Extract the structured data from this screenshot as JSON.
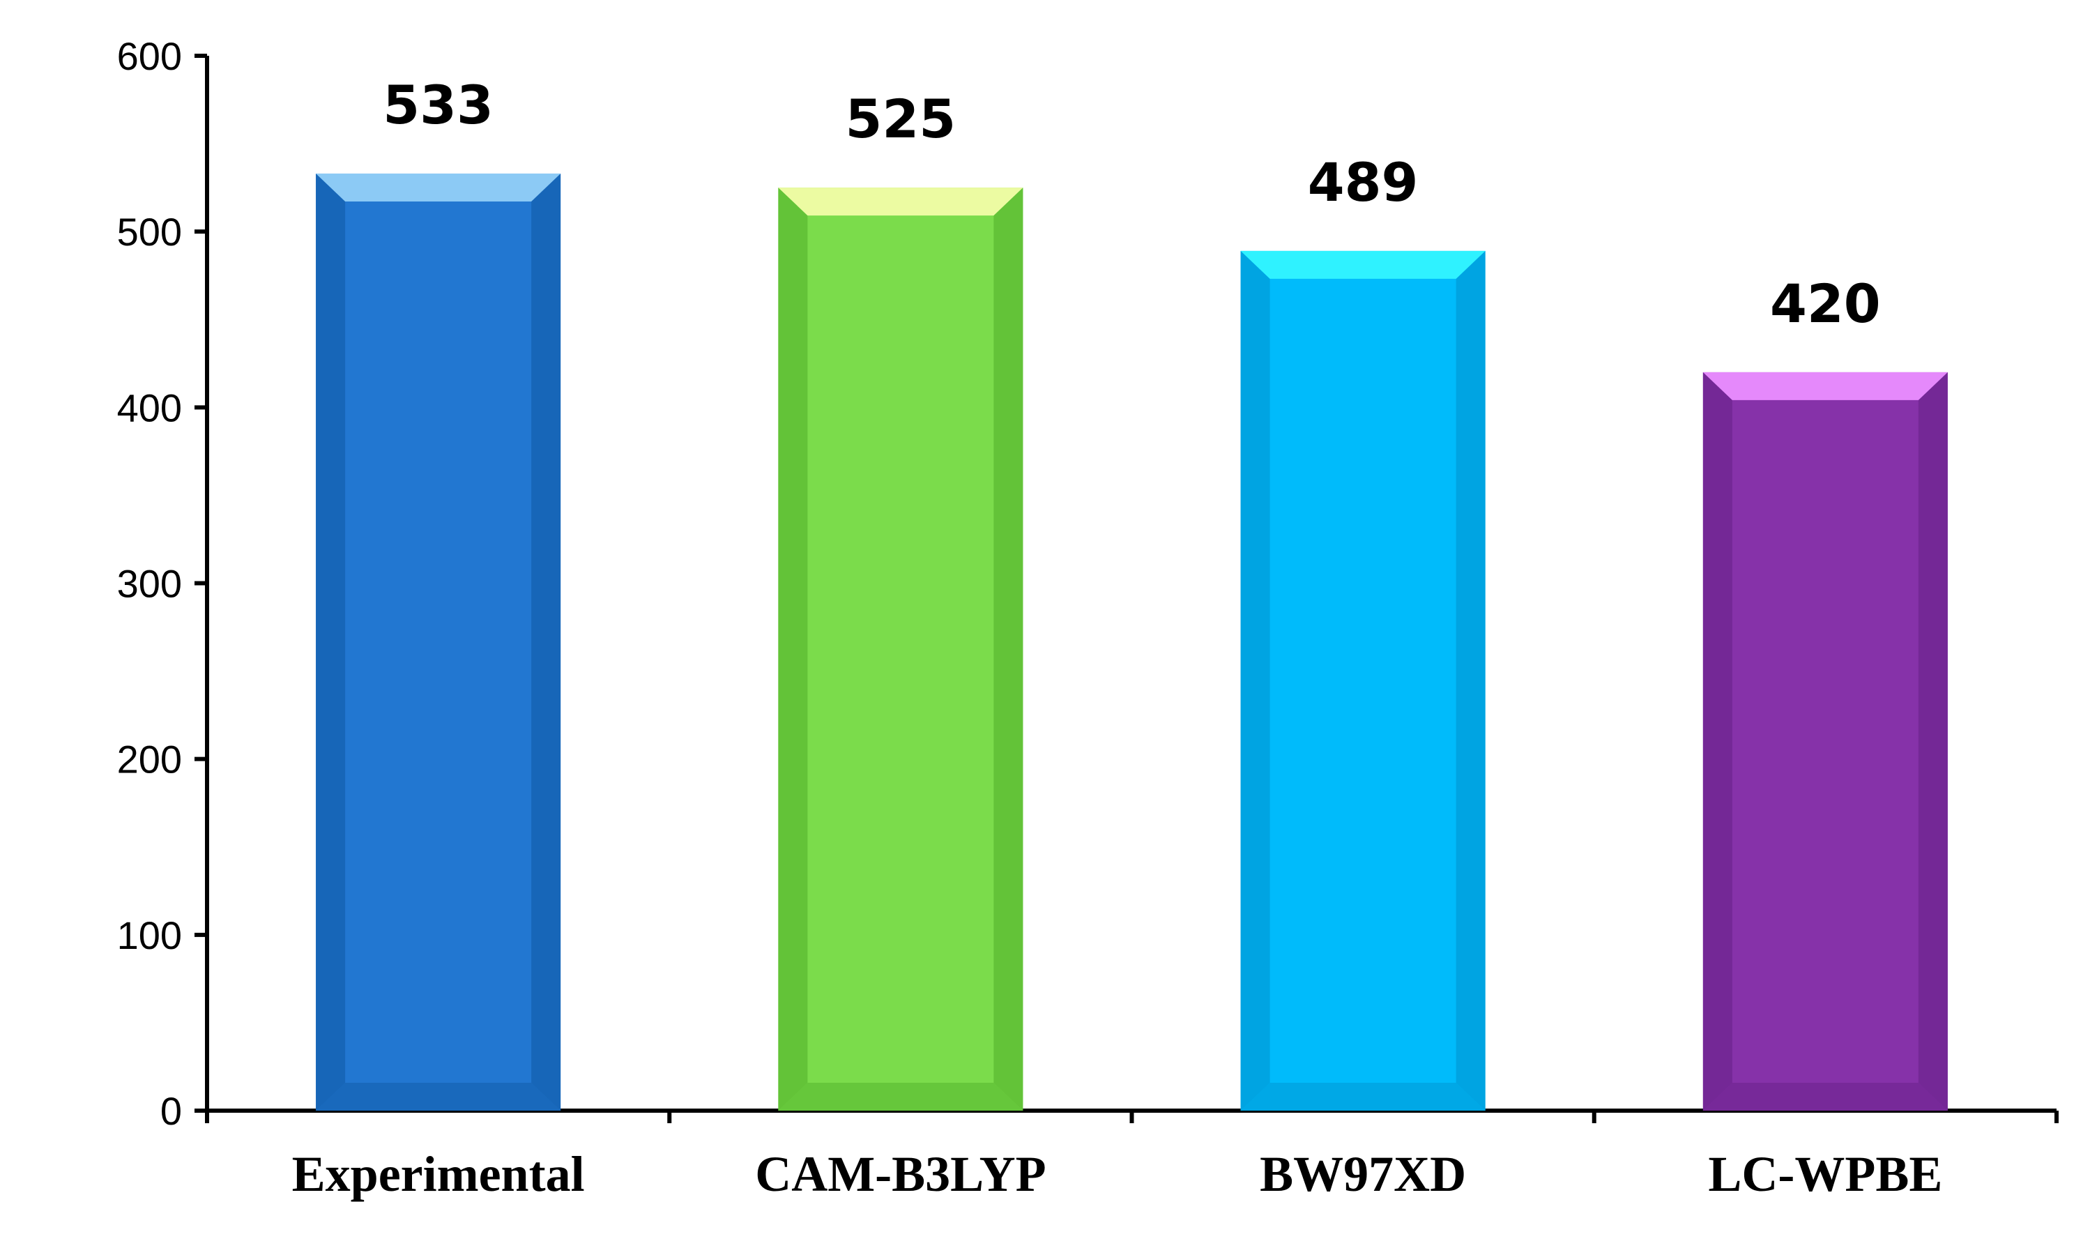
{
  "chart_data": {
    "type": "bar",
    "categories": [
      "Experimental",
      "CAM-B3LYP",
      "BW97XD",
      "LC-WPBE"
    ],
    "values": [
      533,
      525,
      489,
      420
    ],
    "data_labels": [
      "533",
      "525",
      "489",
      "420"
    ],
    "ylim": [
      0,
      600
    ],
    "y_ticks": [
      0,
      100,
      200,
      300,
      400,
      500,
      600
    ],
    "y_tick_labels": [
      "0",
      "100",
      "200",
      "300",
      "400",
      "500",
      "600"
    ],
    "title": "",
    "xlabel": "",
    "ylabel": "",
    "grid": false,
    "legend": "none",
    "bar_colors": [
      {
        "face": "#2277d1",
        "side": "#1766b8",
        "top": "#8ccaf5"
      },
      {
        "face": "#7bdc4b",
        "side": "#63c338",
        "top": "#ecfba2"
      },
      {
        "face": "#00bbfb",
        "side": "#00a4e2",
        "top": "#2ff2ff"
      },
      {
        "face": "#8632a9",
        "side": "#742896",
        "top": "#e589fb"
      }
    ]
  }
}
